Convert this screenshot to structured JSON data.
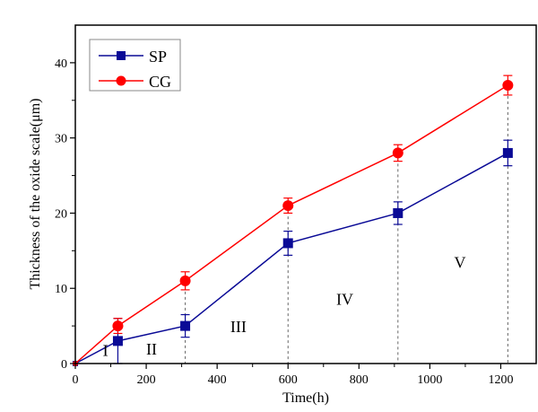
{
  "chart_data": {
    "type": "line",
    "title": "",
    "xlabel": "Time(h)",
    "ylabel": "Thickness of the oxide scale(μm)",
    "xlim": [
      0,
      1300
    ],
    "ylim": [
      0,
      45
    ],
    "xticks": [
      0,
      200,
      400,
      600,
      800,
      1000,
      1200
    ],
    "xticks_minor": [
      100,
      300,
      500,
      700,
      900,
      1100
    ],
    "yticks": [
      0,
      10,
      20,
      30,
      40
    ],
    "yticks_minor": [
      5,
      15,
      25,
      35
    ],
    "grid": false,
    "legend_position": "top-left",
    "x": [
      0,
      120,
      310,
      600,
      910,
      1220
    ],
    "series": [
      {
        "name": "SP",
        "color": "#0a0a96",
        "marker": "square",
        "values": [
          0,
          3,
          5,
          16,
          20,
          28
        ],
        "errors": [
          0,
          3,
          1.5,
          1.6,
          1.5,
          1.7
        ]
      },
      {
        "name": "CG",
        "color": "#ff0000",
        "marker": "circle",
        "values": [
          0,
          5,
          11,
          21,
          28,
          37
        ],
        "errors": [
          0,
          1,
          1.2,
          1.0,
          1.1,
          1.3
        ]
      }
    ],
    "vlines": [
      310,
      600,
      910,
      1220
    ],
    "regions": [
      {
        "label": "I",
        "x": 85,
        "y": 1
      },
      {
        "label": "II",
        "x": 215,
        "y": 1.2
      },
      {
        "label": "III",
        "x": 460,
        "y": 4.2
      },
      {
        "label": "IV",
        "x": 760,
        "y": 7.8
      },
      {
        "label": "V",
        "x": 1085,
        "y": 12.7
      }
    ]
  }
}
